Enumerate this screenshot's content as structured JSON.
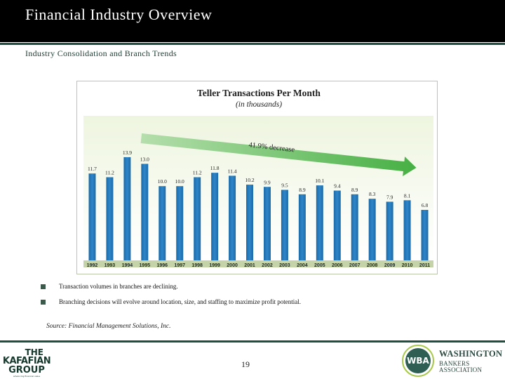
{
  "header": {
    "title": "Financial Industry Overview",
    "subtitle": "Industry Consolidation and Branch Trends"
  },
  "chart_data": {
    "type": "bar",
    "title": "Teller Transactions Per Month",
    "subtitle": "(in thousands)",
    "categories": [
      "1992",
      "1993",
      "1994",
      "1995",
      "1996",
      "1997",
      "1998",
      "1999",
      "2000",
      "2001",
      "2002",
      "2003",
      "2004",
      "2005",
      "2006",
      "2007",
      "2008",
      "2009",
      "2010",
      "2011"
    ],
    "values": [
      11.7,
      11.2,
      13.9,
      13.0,
      10.0,
      10.0,
      11.2,
      11.8,
      11.4,
      10.2,
      9.9,
      9.5,
      8.9,
      10.1,
      9.4,
      8.9,
      8.3,
      7.9,
      8.1,
      6.8
    ],
    "annotation": "41.9% decrease",
    "xlabel": "",
    "ylabel": "",
    "ylim": [
      0,
      16
    ],
    "grid": false,
    "colors": {
      "bar": "#2e86c9",
      "arrow": "#46b043",
      "plot_background_top": "#eef5df",
      "plot_background_bottom": "#ffffff",
      "frame": "#b9c6a8",
      "xaxis_band": "#c5d3a8"
    }
  },
  "bullets": [
    "Transaction volumes in branches are declining.",
    "Branching decisions will evolve around location, size, and staffing to maximize profit potential."
  ],
  "source": "Source: Financial Management Solutions, Inc.",
  "footer": {
    "page_number": "19",
    "left_logo": {
      "line1": "THE",
      "line2": "KAFAFIAN",
      "line3": "GROUP",
      "tagline": "advancing financial value"
    },
    "right_logo": {
      "seal": "WBA",
      "name_line1": "WASHINGTON",
      "name_line2": "BANKERS ASSOCIATION"
    }
  },
  "colors": {
    "title_bar": "#000000",
    "accent_green": "#1f4f40",
    "bullet": "#3a5a4c"
  }
}
